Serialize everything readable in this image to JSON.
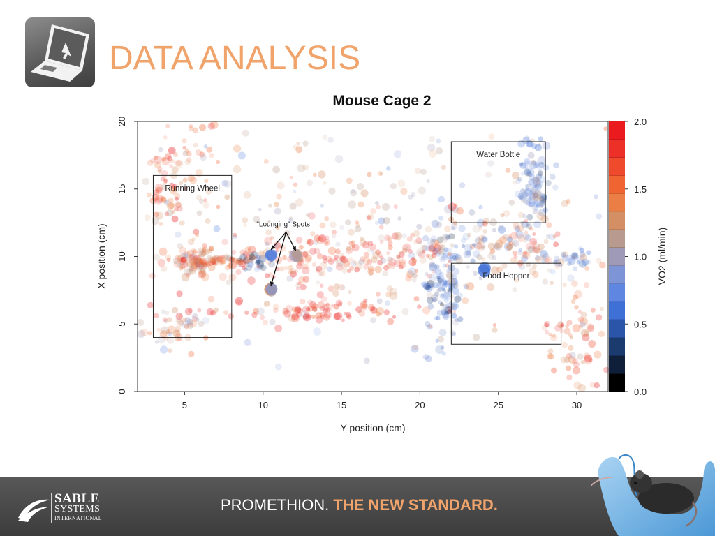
{
  "slide": {
    "title": "DATA ANALYSIS",
    "accent_color": "#f0a36a",
    "header_icon": "laptop-icon"
  },
  "chart_data": {
    "type": "scatter",
    "title": "Mouse Cage 2",
    "xlabel": "Y position (cm)",
    "ylabel": "X position (cm)",
    "xlim": [
      2,
      32
    ],
    "ylim": [
      0,
      20
    ],
    "xticks": [
      5,
      10,
      15,
      20,
      25,
      30
    ],
    "yticks": [
      0,
      5,
      10,
      15,
      20
    ],
    "grid": false,
    "colorbar": {
      "label": "VO2 (ml/min)",
      "range": [
        0,
        2
      ],
      "ticks": [
        0.0,
        0.5,
        1.0,
        1.5,
        2.0
      ],
      "tick_labels": [
        "0.0",
        "0.5",
        "1.0",
        "1.5",
        "2.0"
      ],
      "colors": [
        "#000000",
        "#0f1f3a",
        "#1b3a6e",
        "#2a55a8",
        "#3f70d6",
        "#5f86e0",
        "#7d94d6",
        "#9f9ab8",
        "#b89a8e",
        "#d49064",
        "#ea7e44",
        "#f06432",
        "#f04a2c",
        "#ec3028",
        "#ea1a1e"
      ]
    },
    "regions": [
      {
        "label": "Running Wheel",
        "x": [
          3,
          8
        ],
        "y": [
          4,
          16
        ]
      },
      {
        "label": "Water Bottle",
        "x": [
          22,
          28
        ],
        "y": [
          12.5,
          18.5
        ]
      },
      {
        "label": "Food Hopper",
        "x": [
          22,
          29
        ],
        "y": [
          3.5,
          9.5
        ]
      }
    ],
    "annotation": {
      "label": "\"Lounging\" Spots",
      "anchor": [
        11.2,
        11.8
      ],
      "targets": [
        [
          10.5,
          10.5
        ],
        [
          12.1,
          10.4
        ],
        [
          10.5,
          7.8
        ]
      ]
    },
    "series": [
      {
        "cx": 5.8,
        "cy": 9.7,
        "sx": 0.7,
        "sy": 0.7,
        "n": 70,
        "vo2": 1.3
      },
      {
        "cx": 7.0,
        "cy": 9.7,
        "sx": 1.4,
        "sy": 0.2,
        "n": 70,
        "vo2": 1.5
      },
      {
        "cx": 3.8,
        "cy": 15.0,
        "sx": 0.6,
        "sy": 1.2,
        "n": 40,
        "vo2": 1.6
      },
      {
        "cx": 4.5,
        "cy": 4.5,
        "sx": 1.0,
        "sy": 0.6,
        "n": 40,
        "vo2": 1.2
      },
      {
        "cx": 9.5,
        "cy": 9.5,
        "sx": 0.6,
        "sy": 0.3,
        "n": 25,
        "vo2": 0.5
      },
      {
        "cx": 13.0,
        "cy": 9.7,
        "sx": 4.0,
        "sy": 1.3,
        "n": 160,
        "vo2": 1.6
      },
      {
        "cx": 13.0,
        "cy": 6.0,
        "sx": 4.0,
        "sy": 0.4,
        "n": 90,
        "vo2": 1.8
      },
      {
        "cx": 18.5,
        "cy": 10.2,
        "sx": 2.0,
        "sy": 1.0,
        "n": 50,
        "vo2": 1.7
      },
      {
        "cx": 21.6,
        "cy": 7.8,
        "sx": 0.6,
        "sy": 2.2,
        "n": 130,
        "vo2": 0.7
      },
      {
        "cx": 23.0,
        "cy": 11.0,
        "sx": 1.6,
        "sy": 0.9,
        "n": 50,
        "vo2": 0.95
      },
      {
        "cx": 27.2,
        "cy": 15.3,
        "sx": 0.5,
        "sy": 2.2,
        "n": 110,
        "vo2": 0.75
      },
      {
        "cx": 26.5,
        "cy": 11.0,
        "sx": 1.3,
        "sy": 1.2,
        "n": 70,
        "vo2": 1.4
      },
      {
        "cx": 29.5,
        "cy": 9.8,
        "sx": 0.8,
        "sy": 0.6,
        "n": 30,
        "vo2": 0.8
      },
      {
        "cx": 29.8,
        "cy": 3.5,
        "sx": 0.9,
        "sy": 2.5,
        "n": 80,
        "vo2": 1.6
      },
      {
        "cx": 16.0,
        "cy": 12.0,
        "sx": 8.0,
        "sy": 4.0,
        "n": 260,
        "vo2": 1.2
      },
      {
        "cx": 5.0,
        "cy": 16.5,
        "sx": 1.5,
        "sy": 2.0,
        "n": 60,
        "vo2": 1.5
      },
      {
        "cx": 10.5,
        "cy": 10.2,
        "sx": 0.1,
        "sy": 0.1,
        "n": 4,
        "vo2": 0.6
      },
      {
        "cx": 12.1,
        "cy": 10.1,
        "sx": 0.1,
        "sy": 0.1,
        "n": 4,
        "vo2": 1.0
      },
      {
        "cx": 10.5,
        "cy": 7.6,
        "sx": 0.1,
        "sy": 0.1,
        "n": 4,
        "vo2": 1.1
      },
      {
        "cx": 24.0,
        "cy": 9.0,
        "sx": 0.1,
        "sy": 0.1,
        "n": 4,
        "vo2": 0.7
      }
    ]
  },
  "footer": {
    "brand_line1": "SABLE",
    "brand_line2": "SYSTEMS",
    "brand_line3": "INTERNATIONAL",
    "brand_icon": "sable-wave-icon",
    "tagline_product": "PROMETHION.",
    "tagline_claim": "THE NEW STANDARD.",
    "photo_icon": "gloved-hand-mouse-icon"
  }
}
